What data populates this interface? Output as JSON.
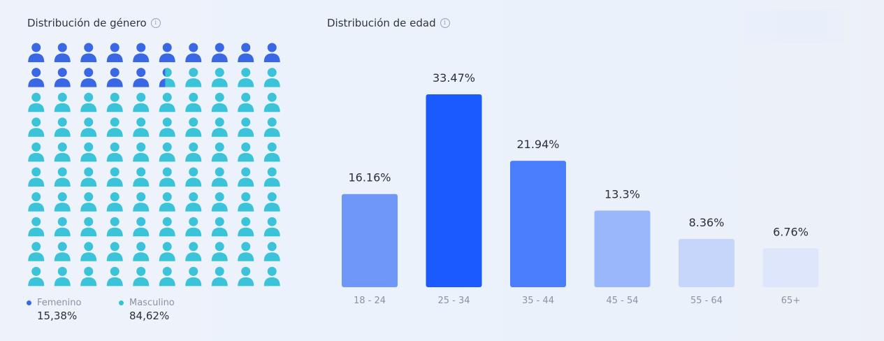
{
  "gender": {
    "title": "Distribución de género",
    "info_icon": "info-icon",
    "person_icon": "person-icon",
    "female_fraction": 0.1538,
    "female_color": "#3a67e4",
    "male_color": "#3bc3d9",
    "legend": [
      {
        "label": "Femenino",
        "value": "15,38%",
        "color": "#3a67e4"
      },
      {
        "label": "Masculino",
        "value": "84,62%",
        "color": "#2fc4d6"
      }
    ]
  },
  "age": {
    "title": "Distribución de edad",
    "info_icon": "info-icon"
  },
  "chart_data": [
    {
      "type": "bar",
      "title": "Distribución de edad",
      "categories": [
        "18 - 24",
        "25 - 34",
        "35 - 44",
        "45 - 54",
        "55 - 64",
        "65+"
      ],
      "values": [
        16.16,
        33.47,
        21.94,
        13.3,
        8.36,
        6.76
      ],
      "data_labels": [
        "16.16%",
        "33.47%",
        "21.94%",
        "13.3%",
        "8.36%",
        "6.76%"
      ],
      "colors": [
        "#6f97fa",
        "#1a5afe",
        "#4a7efd",
        "#9bb7fb",
        "#c6d5fa",
        "#dde6fb"
      ],
      "ylim": [
        0,
        33.47
      ],
      "grid": false,
      "xlabel": "",
      "ylabel": ""
    }
  ]
}
